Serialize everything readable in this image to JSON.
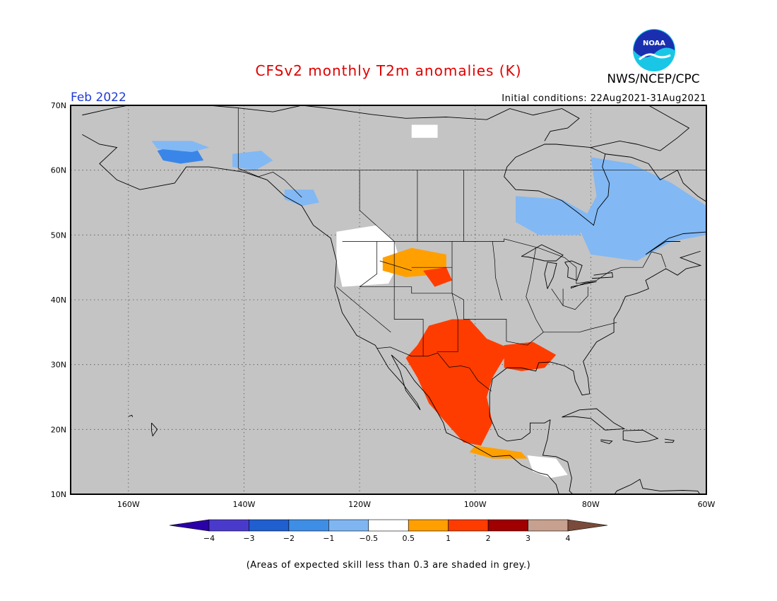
{
  "title": "CFSv2 monthly T2m anomalies (K)",
  "agency": "NWS/NCEP/CPC",
  "logo_text": "NOAA",
  "month_label": "Feb 2022",
  "initial_conditions": "Initial conditions: 22Aug2021-31Aug2021",
  "footnote": "(Areas of expected skill less than 0.3 are shaded in grey.)",
  "map": {
    "projection": "equirectangular",
    "lon_range": [
      -170,
      -60
    ],
    "lat_range": [
      10,
      70
    ],
    "background": "skill below 0.3 (grey)",
    "lat_ticks": [
      "10N",
      "20N",
      "30N",
      "40N",
      "50N",
      "60N",
      "70N"
    ],
    "lon_ticks": [
      "160W",
      "140W",
      "120W",
      "100W",
      "80W",
      "60W"
    ],
    "gridlines": true,
    "regions": [
      {
        "name": "alaska-south-coast",
        "category": "-2",
        "lon": -152,
        "lat": 62
      },
      {
        "name": "alaska-interior",
        "category": "-1",
        "lon": -150,
        "lat": 63
      },
      {
        "name": "yukon",
        "category": "-1",
        "lon": -138,
        "lat": 61
      },
      {
        "name": "northern-bc",
        "category": "-1",
        "lon": -131,
        "lat": 58
      },
      {
        "name": "hudson-bay-lowlands",
        "category": "-1",
        "lon": -85,
        "lat": 53
      },
      {
        "name": "quebec-labrador",
        "category": "-1",
        "lon": -70,
        "lat": 53
      },
      {
        "name": "pacific-northwest",
        "category": "-0.5",
        "lon": -120,
        "lat": 48
      },
      {
        "name": "yukon-arctic",
        "category": "-0.5",
        "lon": -108,
        "lat": 66
      },
      {
        "name": "northern-rockies",
        "category": "0.5",
        "lon": -110,
        "lat": 45
      },
      {
        "name": "wyoming",
        "category": "1",
        "lon": -106,
        "lat": 43
      },
      {
        "name": "southern-plains-mexico",
        "category": "1",
        "lon": -102,
        "lat": 28
      },
      {
        "name": "gulf-coast",
        "category": "1",
        "lon": -90,
        "lat": 31
      },
      {
        "name": "southern-mexico",
        "category": "0.5",
        "lon": -96,
        "lat": 17
      },
      {
        "name": "central-america",
        "category": "-0.5",
        "lon": -88,
        "lat": 14
      }
    ]
  },
  "colorbar": {
    "labels": [
      "−4",
      "−3",
      "−2",
      "−1",
      "−0.5",
      "0.5",
      "1",
      "2",
      "3",
      "4"
    ],
    "colors": [
      "#2a00a8",
      "#4a3acc",
      "#1f5fd0",
      "#3f8ee6",
      "#7fb6f2",
      "#ffffff",
      "#ff9f00",
      "#ff3c00",
      "#a00000",
      "#c8a090",
      "#7a4a3a"
    ]
  }
}
